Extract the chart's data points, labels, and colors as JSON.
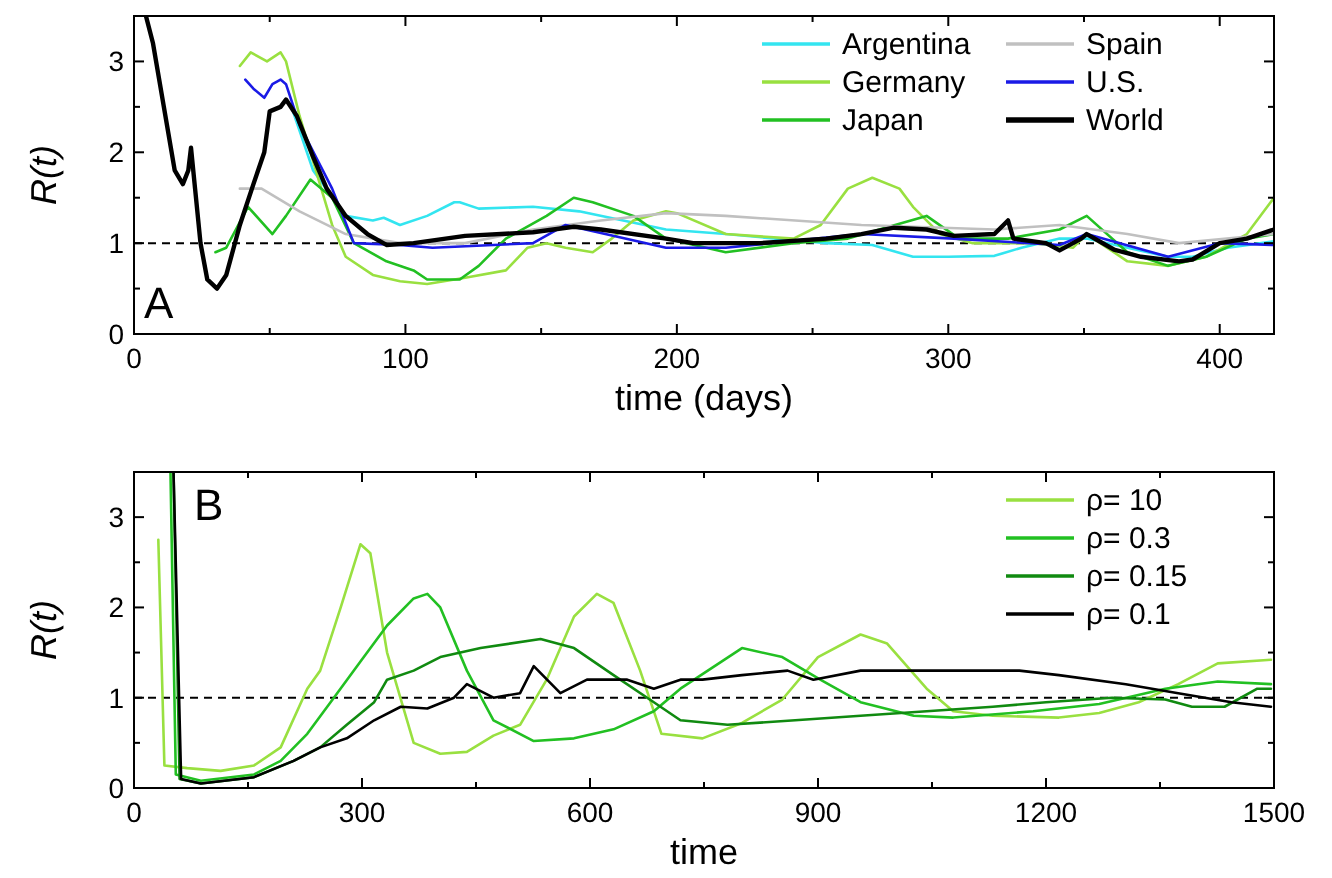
{
  "chart_data": [
    {
      "type": "line",
      "xlabel": "time (days)",
      "ylabel": "R(t)",
      "annotations": [
        "A"
      ],
      "xlim": [
        0,
        420
      ],
      "ylim": [
        0,
        3.5
      ],
      "xticks": [
        0,
        {
          "value": 50,
          "label": null
        },
        100,
        {
          "value": 150,
          "label": null
        },
        200,
        {
          "value": 250,
          "label": null
        },
        300,
        {
          "value": 350,
          "label": null
        },
        400
      ],
      "yticks": [
        0,
        {
          "value": 0.5,
          "label": null
        },
        1,
        {
          "value": 1.5,
          "label": null
        },
        2,
        {
          "value": 2.5,
          "label": null
        },
        3
      ],
      "legend": "top right",
      "line_style": "solid",
      "marker": "none",
      "ref_lines": [
        {
          "axis": "y",
          "value": 1,
          "label": null,
          "line_style": "dashed",
          "color": "#000000"
        }
      ],
      "series": [
        {
          "name": "Argentina",
          "color": "#33e5f0",
          "x": [
            58,
            66,
            78,
            88,
            92,
            98,
            108,
            118,
            120,
            127,
            147,
            164,
            196,
            218,
            255,
            272,
            287,
            300,
            317,
            327,
            341,
            351,
            366,
            381,
            390,
            403,
            420
          ],
          "values": [
            2.5,
            1.8,
            1.3,
            1.25,
            1.28,
            1.2,
            1.3,
            1.45,
            1.45,
            1.38,
            1.4,
            1.35,
            1.15,
            1.1,
            1.0,
            0.98,
            0.85,
            0.85,
            0.86,
            0.95,
            1.05,
            1.05,
            0.95,
            0.85,
            0.85,
            0.95,
            1.02
          ]
        },
        {
          "name": "Germany",
          "color": "#99e040",
          "x": [
            39,
            43,
            49,
            54,
            56,
            61,
            69,
            73,
            78,
            88,
            98,
            108,
            122,
            137,
            145,
            152,
            159,
            169,
            176,
            184,
            196,
            200,
            218,
            243,
            253,
            263,
            272,
            282,
            287,
            297,
            309,
            331,
            346,
            351,
            366,
            381,
            395,
            410,
            420
          ],
          "values": [
            2.95,
            3.1,
            3.0,
            3.1,
            3.0,
            2.4,
            1.6,
            1.2,
            0.85,
            0.65,
            0.58,
            0.55,
            0.62,
            0.7,
            0.95,
            1.0,
            0.95,
            0.9,
            1.05,
            1.25,
            1.35,
            1.33,
            1.1,
            1.05,
            1.2,
            1.6,
            1.72,
            1.6,
            1.4,
            1.1,
            1.0,
            1.0,
            0.95,
            1.1,
            0.8,
            0.75,
            0.85,
            1.1,
            1.5
          ]
        },
        {
          "name": "Japan",
          "color": "#22c022",
          "x": [
            30,
            34,
            42,
            51,
            56,
            65,
            73,
            81,
            93,
            103,
            108,
            120,
            127,
            137,
            152,
            162,
            169,
            184,
            196,
            218,
            243,
            263,
            292,
            304,
            322,
            341,
            351,
            366,
            381,
            395,
            410,
            420
          ],
          "values": [
            0.9,
            0.95,
            1.4,
            1.1,
            1.3,
            1.7,
            1.5,
            1.0,
            0.8,
            0.7,
            0.6,
            0.6,
            0.75,
            1.05,
            1.3,
            1.5,
            1.45,
            1.3,
            1.05,
            0.9,
            1.0,
            1.05,
            1.3,
            1.05,
            1.05,
            1.15,
            1.3,
            0.9,
            0.75,
            0.85,
            1.05,
            1.1
          ]
        },
        {
          "name": "Spain",
          "color": "#c0c0c0",
          "x": [
            39,
            47,
            61,
            78,
            98,
            122,
            147,
            172,
            196,
            218,
            268,
            317,
            341,
            366,
            385,
            420
          ],
          "values": [
            1.6,
            1.6,
            1.35,
            1.1,
            1.0,
            1.0,
            1.15,
            1.25,
            1.33,
            1.3,
            1.2,
            1.15,
            1.2,
            1.1,
            1.0,
            1.1
          ]
        },
        {
          "name": "U.S.",
          "color": "#1a1ae6",
          "x": [
            41,
            44,
            48,
            51,
            54,
            56,
            61,
            73,
            81,
            98,
            110,
            147,
            159,
            196,
            218,
            268,
            302,
            341,
            351,
            381,
            400,
            420
          ],
          "values": [
            2.8,
            2.7,
            2.6,
            2.75,
            2.8,
            2.75,
            2.3,
            1.6,
            1.0,
            0.98,
            0.95,
            1.0,
            1.2,
            0.95,
            0.95,
            1.1,
            1.05,
            0.98,
            1.1,
            0.85,
            1.0,
            0.98
          ]
        },
        {
          "name": "World",
          "color": "#000000",
          "x": [
            4.4,
            7,
            11,
            15,
            18,
            20,
            21,
            22.5,
            24.5,
            27,
            30.6,
            34,
            39,
            44,
            48,
            50,
            54,
            56,
            60,
            66,
            71,
            78,
            86,
            93,
            103,
            122,
            147,
            162,
            172,
            196,
            206,
            231,
            255,
            268,
            280,
            292,
            302,
            317,
            322,
            324,
            336,
            341,
            349,
            351,
            361,
            371,
            385,
            390,
            400,
            410,
            420
          ],
          "values": [
            3.5,
            3.2,
            2.5,
            1.8,
            1.65,
            1.8,
            2.05,
            1.6,
            1.0,
            0.6,
            0.5,
            0.65,
            1.2,
            1.65,
            2.0,
            2.45,
            2.5,
            2.58,
            2.4,
            1.95,
            1.6,
            1.3,
            1.1,
            0.98,
            1.0,
            1.08,
            1.12,
            1.18,
            1.15,
            1.05,
            1.0,
            1.0,
            1.05,
            1.1,
            1.17,
            1.15,
            1.08,
            1.1,
            1.25,
            1.05,
            1.0,
            0.92,
            1.05,
            1.1,
            0.93,
            0.85,
            0.8,
            0.82,
            1.0,
            1.05,
            1.15
          ]
        }
      ]
    },
    {
      "type": "line",
      "xlabel": "time",
      "ylabel": "R(t)",
      "annotations": [
        "B"
      ],
      "xlim": [
        0,
        1500
      ],
      "ylim": [
        0,
        3.5
      ],
      "xticks": [
        0,
        {
          "value": 150,
          "label": null
        },
        300,
        {
          "value": 450,
          "label": null
        },
        600,
        {
          "value": 750,
          "label": null
        },
        900,
        {
          "value": 1050,
          "label": null
        },
        1200,
        {
          "value": 1350,
          "label": null
        },
        1500
      ],
      "yticks": [
        0,
        {
          "value": 0.5,
          "label": null
        },
        1,
        {
          "value": 1.5,
          "label": null
        },
        2,
        {
          "value": 2.5,
          "label": null
        },
        3
      ],
      "legend": "top right",
      "line_style": "solid",
      "marker": "none",
      "ref_lines": [
        {
          "axis": "y",
          "value": 1,
          "label": null,
          "line_style": "dashed",
          "color": "#000000"
        }
      ],
      "series": [
        {
          "name": "ρ= 10",
          "color": "#99e040",
          "x": [
            32,
            40,
            70,
            114,
            158,
            193,
            228,
            245,
            272,
            298,
            311,
            333,
            368,
            403,
            438,
            473,
            508,
            543,
            579,
            609,
            631,
            666,
            694,
            748,
            800,
            853,
            900,
            956,
            991,
            1043,
            1078,
            1130,
            1217,
            1270,
            1322,
            1374,
            1426,
            1496
          ],
          "values": [
            2.75,
            0.25,
            0.22,
            0.19,
            0.25,
            0.45,
            1.1,
            1.3,
            2.0,
            2.7,
            2.6,
            1.5,
            0.5,
            0.38,
            0.4,
            0.58,
            0.7,
            1.2,
            1.9,
            2.15,
            2.05,
            1.3,
            0.6,
            0.55,
            0.72,
            0.98,
            1.45,
            1.7,
            1.6,
            1.1,
            0.85,
            0.8,
            0.78,
            0.83,
            0.95,
            1.15,
            1.38,
            1.42
          ]
        },
        {
          "name": "ρ= 0.3",
          "color": "#22c022",
          "x": [
            48,
            55,
            88,
            158,
            193,
            228,
            263,
            298,
            333,
            368,
            386,
            403,
            438,
            473,
            526,
            579,
            631,
            684,
            719,
            800,
            853,
            903,
            956,
            1026,
            1078,
            1183,
            1270,
            1357,
            1426,
            1496
          ],
          "values": [
            3.5,
            0.15,
            0.08,
            0.15,
            0.3,
            0.6,
            1.0,
            1.4,
            1.8,
            2.1,
            2.15,
            2.0,
            1.3,
            0.75,
            0.52,
            0.55,
            0.65,
            0.85,
            1.1,
            1.55,
            1.45,
            1.2,
            0.95,
            0.8,
            0.78,
            0.85,
            0.93,
            1.1,
            1.18,
            1.15
          ]
        },
        {
          "name": "ρ= 0.15",
          "color": "#108a10",
          "x": [
            52,
            60,
            88,
            158,
            210,
            245,
            280,
            316,
            333,
            368,
            403,
            456,
            535,
            579,
            631,
            684,
            719,
            781,
            870,
            956,
            1043,
            1130,
            1200,
            1287,
            1357,
            1392,
            1435,
            1478,
            1496
          ],
          "values": [
            3.5,
            0.1,
            0.05,
            0.12,
            0.3,
            0.45,
            0.7,
            0.95,
            1.2,
            1.3,
            1.45,
            1.55,
            1.65,
            1.55,
            1.25,
            0.95,
            0.75,
            0.7,
            0.75,
            0.8,
            0.85,
            0.9,
            0.95,
            1.0,
            0.98,
            0.9,
            0.9,
            1.1,
            1.1
          ]
        },
        {
          "name": "ρ= 0.1",
          "color": "#000000",
          "x": [
            52,
            62,
            88,
            158,
            210,
            245,
            280,
            316,
            351,
            386,
            421,
            438,
            473,
            508,
            526,
            561,
            596,
            649,
            684,
            719,
            748,
            800,
            860,
            894,
            956,
            1043,
            1165,
            1217,
            1305,
            1374,
            1444,
            1496
          ],
          "values": [
            3.5,
            0.1,
            0.05,
            0.12,
            0.3,
            0.45,
            0.55,
            0.75,
            0.9,
            0.88,
            1.0,
            1.15,
            1.0,
            1.05,
            1.35,
            1.05,
            1.2,
            1.2,
            1.1,
            1.2,
            1.2,
            1.25,
            1.3,
            1.2,
            1.3,
            1.3,
            1.3,
            1.25,
            1.15,
            1.05,
            0.95,
            0.9
          ]
        }
      ]
    }
  ]
}
